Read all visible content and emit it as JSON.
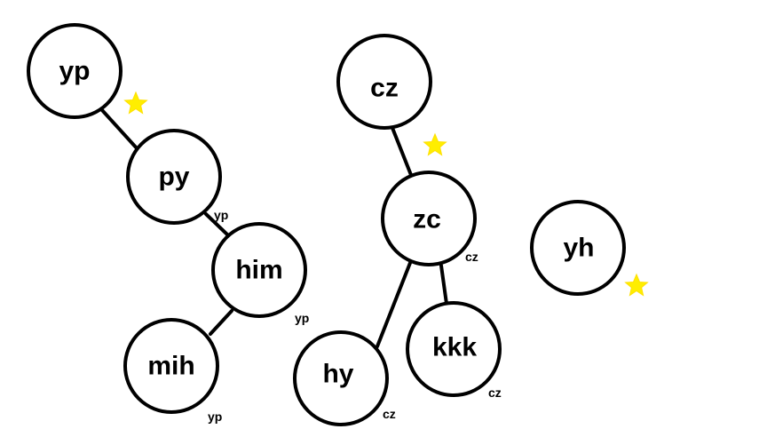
{
  "colors": {
    "background": "#ffffff",
    "stroke": "#000000",
    "star": "#ffee00"
  },
  "nodes": {
    "yp": "yp",
    "py": "py",
    "him": "him",
    "mih": "mih",
    "cz": "cz",
    "zc": "zc",
    "hy": "hy",
    "kkk": "kkk",
    "yh": "yh"
  },
  "parent_labels": {
    "py": "yp",
    "him": "yp",
    "mih": "yp",
    "zc": "cz",
    "hy": "cz",
    "kkk": "cz"
  },
  "edges": [
    [
      "yp",
      "py"
    ],
    [
      "py",
      "him"
    ],
    [
      "him",
      "mih"
    ],
    [
      "cz",
      "zc"
    ],
    [
      "zc",
      "hy"
    ],
    [
      "zc",
      "kkk"
    ]
  ],
  "root_markers": [
    "yp",
    "cz",
    "yh"
  ],
  "marker_icon": "star-icon"
}
